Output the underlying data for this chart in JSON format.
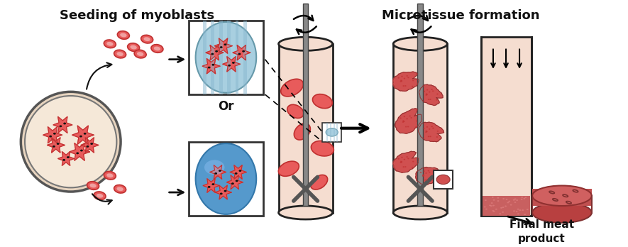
{
  "title_left": "Seeding of myoblasts",
  "title_right": "Microtissue formation",
  "label_or": "Or",
  "label_final": "Final meat\nproduct",
  "bg_color": "#ffffff",
  "cell_color": "#e85b5b",
  "cell_outline": "#c03030",
  "cell_fill_light": "#f0a0a0",
  "blue_bg": "#a8cfe0",
  "blue_stripe": "#8ab8d0",
  "bioreactor_fill": "#f5ddd0",
  "bioreactor_outline": "#222222",
  "shaft_color": "#888888",
  "impeller_color": "#555555",
  "meat_color": "#c8605a",
  "meat_dark": "#a04040",
  "petri_fill": "#f5e8d8",
  "petri_outline": "#555555",
  "arrow_color": "#111111",
  "box_outline": "#333333",
  "title_fontsize": 13,
  "label_fontsize": 11,
  "text_color": "#111111"
}
